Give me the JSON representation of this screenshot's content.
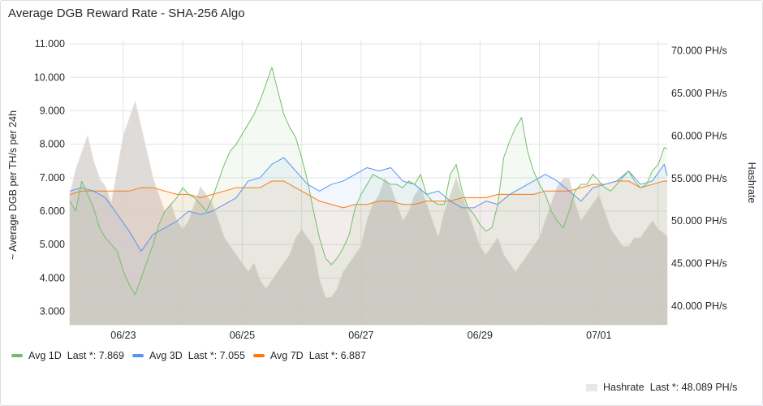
{
  "panel": {
    "title": "Average DGB Reward Rate - SHA-256 Algo"
  },
  "colors": {
    "avg1d": "#73bf69",
    "avg3d": "#5794f2",
    "avg7d": "#ff780a",
    "hashrate": "#c8c4bf",
    "grid": "#e4e4e4"
  },
  "chart_data": {
    "type": "line",
    "title": "Average DGB Reward Rate - SHA-256 Algo",
    "xlabel": "",
    "ylabel": "~ Average DGB per TH/s per 24h",
    "y2label": "Hashrate",
    "ylim": [
      2600,
      11100
    ],
    "y2lim": [
      37800,
      71200
    ],
    "yticks": [
      "3.000",
      "4.000",
      "5.000",
      "6.000",
      "7.000",
      "8.000",
      "9.000",
      "10.000",
      "11.000"
    ],
    "y2ticks": [
      "40.000 PH/s",
      "45.000 PH/s",
      "50.000 PH/s",
      "55.000 PH/s",
      "60.000 PH/s",
      "65.000 PH/s",
      "70.000 PH/s"
    ],
    "xticks": [
      "06/23",
      "06/25",
      "06/27",
      "06/29",
      "07/01"
    ],
    "xlim_days": [
      0.6,
      10.65
    ],
    "xtick_days": [
      1.5,
      3.5,
      5.5,
      7.5,
      9.5
    ],
    "grid": true,
    "legend_placement": "bottom",
    "series": [
      {
        "name": "Avg 1D",
        "last": "Last *: 7.869",
        "axis": "left",
        "x": [
          0.6,
          0.7,
          0.8,
          0.9,
          1.0,
          1.1,
          1.2,
          1.3,
          1.4,
          1.5,
          1.6,
          1.7,
          1.8,
          1.9,
          2.0,
          2.1,
          2.2,
          2.3,
          2.4,
          2.5,
          2.6,
          2.7,
          2.8,
          2.9,
          3.0,
          3.1,
          3.2,
          3.3,
          3.4,
          3.5,
          3.6,
          3.7,
          3.8,
          3.9,
          4.0,
          4.1,
          4.2,
          4.3,
          4.4,
          4.5,
          4.6,
          4.7,
          4.8,
          4.9,
          5.0,
          5.1,
          5.2,
          5.3,
          5.4,
          5.5,
          5.6,
          5.7,
          5.8,
          5.9,
          6.0,
          6.1,
          6.2,
          6.3,
          6.4,
          6.5,
          6.6,
          6.7,
          6.8,
          6.9,
          7.0,
          7.1,
          7.2,
          7.3,
          7.4,
          7.5,
          7.6,
          7.7,
          7.8,
          7.9,
          8.0,
          8.1,
          8.2,
          8.3,
          8.4,
          8.5,
          8.6,
          8.7,
          8.8,
          8.9,
          9.0,
          9.1,
          9.2,
          9.3,
          9.4,
          9.5,
          9.6,
          9.7,
          9.8,
          9.9,
          10.0,
          10.1,
          10.2,
          10.3,
          10.4,
          10.5,
          10.6,
          10.65
        ],
        "values": [
          6.3,
          6.0,
          6.9,
          6.5,
          6.1,
          5.5,
          5.2,
          5.0,
          4.8,
          4.2,
          3.8,
          3.5,
          4.0,
          4.5,
          5.0,
          5.6,
          6.0,
          6.2,
          6.4,
          6.7,
          6.5,
          6.4,
          6.2,
          6.0,
          6.4,
          6.9,
          7.4,
          7.8,
          8.0,
          8.3,
          8.6,
          8.9,
          9.3,
          9.8,
          10.3,
          9.6,
          8.9,
          8.5,
          8.2,
          7.6,
          6.9,
          6.0,
          5.2,
          4.6,
          4.4,
          4.6,
          4.9,
          5.3,
          6.1,
          6.5,
          6.8,
          7.1,
          7.0,
          6.9,
          6.8,
          6.8,
          6.7,
          6.9,
          6.8,
          7.1,
          6.5,
          6.3,
          6.2,
          6.2,
          7.1,
          7.4,
          6.6,
          6.1,
          5.9,
          5.6,
          5.4,
          5.5,
          6.2,
          7.6,
          8.1,
          8.5,
          8.8,
          7.8,
          7.2,
          6.8,
          6.5,
          6.0,
          5.7,
          5.5,
          6.0,
          6.6,
          6.8,
          6.8,
          7.1,
          6.9,
          6.7,
          6.6,
          6.8,
          7.0,
          7.2,
          6.9,
          6.7,
          6.8,
          7.2,
          7.4,
          7.9,
          7.87
        ]
      },
      {
        "name": "Avg 3D",
        "last": "Last *: 7.055",
        "axis": "left",
        "x": [
          0.6,
          0.8,
          1.0,
          1.2,
          1.4,
          1.6,
          1.8,
          2.0,
          2.2,
          2.4,
          2.6,
          2.8,
          3.0,
          3.2,
          3.4,
          3.6,
          3.8,
          4.0,
          4.2,
          4.4,
          4.6,
          4.8,
          5.0,
          5.2,
          5.4,
          5.6,
          5.8,
          6.0,
          6.2,
          6.4,
          6.6,
          6.8,
          7.0,
          7.2,
          7.4,
          7.6,
          7.8,
          8.0,
          8.2,
          8.4,
          8.6,
          8.8,
          9.0,
          9.2,
          9.4,
          9.6,
          9.8,
          10.0,
          10.2,
          10.4,
          10.6,
          10.65
        ],
        "values": [
          6.6,
          6.7,
          6.6,
          6.4,
          5.9,
          5.4,
          4.8,
          5.3,
          5.5,
          5.7,
          6.0,
          5.9,
          6.0,
          6.2,
          6.4,
          6.9,
          7.0,
          7.4,
          7.6,
          7.2,
          6.8,
          6.6,
          6.8,
          6.9,
          7.1,
          7.3,
          7.2,
          7.3,
          6.9,
          6.8,
          6.5,
          6.6,
          6.3,
          6.1,
          6.1,
          6.3,
          6.2,
          6.5,
          6.7,
          6.9,
          7.1,
          6.9,
          6.6,
          6.3,
          6.7,
          6.8,
          6.9,
          7.2,
          6.8,
          6.9,
          7.4,
          7.06
        ]
      },
      {
        "name": "Avg 7D",
        "last": "Last *: 6.887",
        "axis": "left",
        "x": [
          0.6,
          0.8,
          1.0,
          1.2,
          1.4,
          1.6,
          1.8,
          2.0,
          2.2,
          2.4,
          2.6,
          2.8,
          3.0,
          3.2,
          3.4,
          3.6,
          3.8,
          4.0,
          4.2,
          4.4,
          4.6,
          4.8,
          5.0,
          5.2,
          5.4,
          5.6,
          5.8,
          6.0,
          6.2,
          6.4,
          6.6,
          6.8,
          7.0,
          7.2,
          7.4,
          7.6,
          7.8,
          8.0,
          8.2,
          8.4,
          8.6,
          8.8,
          9.0,
          9.2,
          9.4,
          9.6,
          9.8,
          10.0,
          10.2,
          10.4,
          10.6,
          10.65
        ],
        "values": [
          6.5,
          6.6,
          6.6,
          6.6,
          6.6,
          6.6,
          6.7,
          6.7,
          6.6,
          6.5,
          6.5,
          6.4,
          6.5,
          6.6,
          6.7,
          6.7,
          6.7,
          6.9,
          6.9,
          6.7,
          6.5,
          6.3,
          6.2,
          6.1,
          6.2,
          6.2,
          6.3,
          6.3,
          6.2,
          6.2,
          6.3,
          6.3,
          6.3,
          6.4,
          6.4,
          6.4,
          6.5,
          6.5,
          6.5,
          6.5,
          6.6,
          6.6,
          6.6,
          6.7,
          6.8,
          6.8,
          6.9,
          6.9,
          6.7,
          6.8,
          6.9,
          6.89
        ]
      },
      {
        "name": "Hashrate",
        "last": "Last *: 48.089 PH/s",
        "axis": "right",
        "x": [
          0.6,
          0.7,
          0.8,
          0.9,
          1.0,
          1.1,
          1.2,
          1.3,
          1.4,
          1.5,
          1.6,
          1.7,
          1.8,
          1.9,
          2.0,
          2.1,
          2.2,
          2.3,
          2.4,
          2.5,
          2.6,
          2.7,
          2.8,
          2.9,
          3.0,
          3.1,
          3.2,
          3.3,
          3.4,
          3.5,
          3.6,
          3.7,
          3.8,
          3.9,
          4.0,
          4.1,
          4.2,
          4.3,
          4.4,
          4.5,
          4.6,
          4.7,
          4.8,
          4.9,
          5.0,
          5.1,
          5.2,
          5.3,
          5.4,
          5.5,
          5.6,
          5.7,
          5.8,
          5.9,
          6.0,
          6.1,
          6.2,
          6.3,
          6.4,
          6.5,
          6.6,
          6.7,
          6.8,
          6.9,
          7.0,
          7.1,
          7.2,
          7.3,
          7.4,
          7.5,
          7.6,
          7.7,
          7.8,
          7.9,
          8.0,
          8.1,
          8.2,
          8.3,
          8.4,
          8.5,
          8.6,
          8.7,
          8.8,
          8.9,
          9.0,
          9.1,
          9.2,
          9.3,
          9.4,
          9.5,
          9.6,
          9.7,
          9.8,
          9.9,
          10.0,
          10.1,
          10.2,
          10.3,
          10.4,
          10.5,
          10.6,
          10.65
        ],
        "values": [
          53,
          56,
          58,
          60,
          57,
          55,
          54,
          52,
          56,
          60,
          62,
          64,
          61,
          58,
          55,
          53,
          51,
          52,
          50,
          49,
          50,
          52,
          54,
          53,
          52,
          50,
          48,
          47,
          46,
          45,
          44,
          45,
          43,
          42,
          43,
          44,
          45,
          46,
          48,
          49,
          48,
          47,
          43,
          41,
          41,
          42,
          44,
          45,
          46,
          47,
          50,
          52,
          53,
          55,
          54,
          52,
          50,
          51,
          53,
          54,
          52,
          50,
          48,
          51,
          53,
          55,
          53,
          51,
          49,
          47,
          46,
          47,
          48,
          46,
          45,
          44,
          45,
          46,
          47,
          48,
          50,
          52,
          54,
          55,
          55,
          52,
          50,
          51,
          52,
          53,
          51,
          49,
          48,
          47,
          47,
          48,
          48,
          49,
          50,
          49,
          48.5,
          48.1
        ]
      }
    ]
  }
}
